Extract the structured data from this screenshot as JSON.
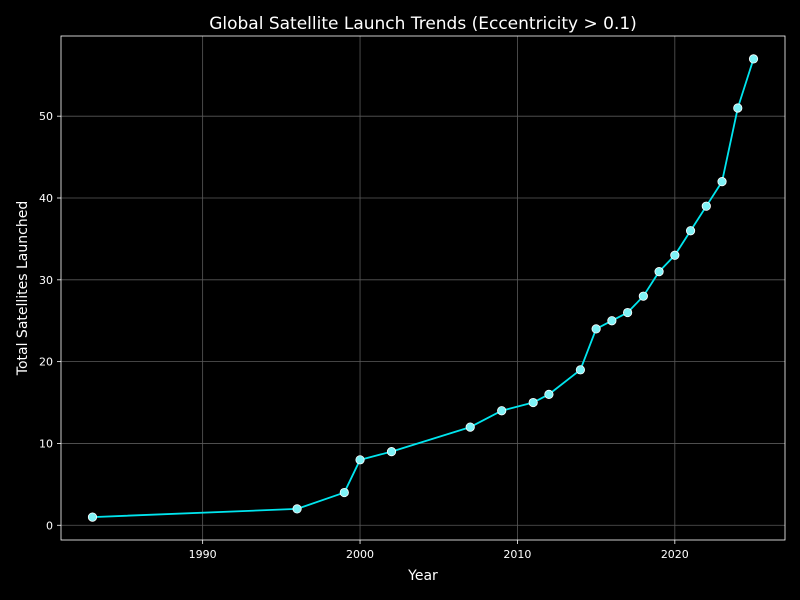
{
  "chart_data": {
    "type": "line",
    "title": "Global Satellite Launch Trends (Eccentricity > 0.1)",
    "xlabel": "Year",
    "ylabel": "Total Satellites Launched",
    "xlim": [
      1981,
      2027
    ],
    "ylim": [
      -1.8,
      59.8
    ],
    "xticks": [
      1990,
      2000,
      2010,
      2020
    ],
    "yticks": [
      0,
      10,
      20,
      30,
      40,
      50
    ],
    "grid": true,
    "legend": "none",
    "series": [
      {
        "color": "#00e5ee",
        "marker_color": "#7ff2f6",
        "x": [
          1983,
          1996,
          1999,
          2000,
          2002,
          2007,
          2009,
          2011,
          2012,
          2014,
          2015,
          2016,
          2017,
          2018,
          2019,
          2020,
          2021,
          2022,
          2023,
          2024,
          2025
        ],
        "y": [
          1,
          2,
          4,
          8,
          9,
          12,
          14,
          15,
          16,
          19,
          24,
          25,
          26,
          28,
          31,
          33,
          36,
          39,
          42,
          51,
          57
        ]
      }
    ]
  },
  "colors": {
    "background": "#000000",
    "grid": "#5a5a5a",
    "axes": "#ffffff",
    "text": "#ffffff"
  }
}
